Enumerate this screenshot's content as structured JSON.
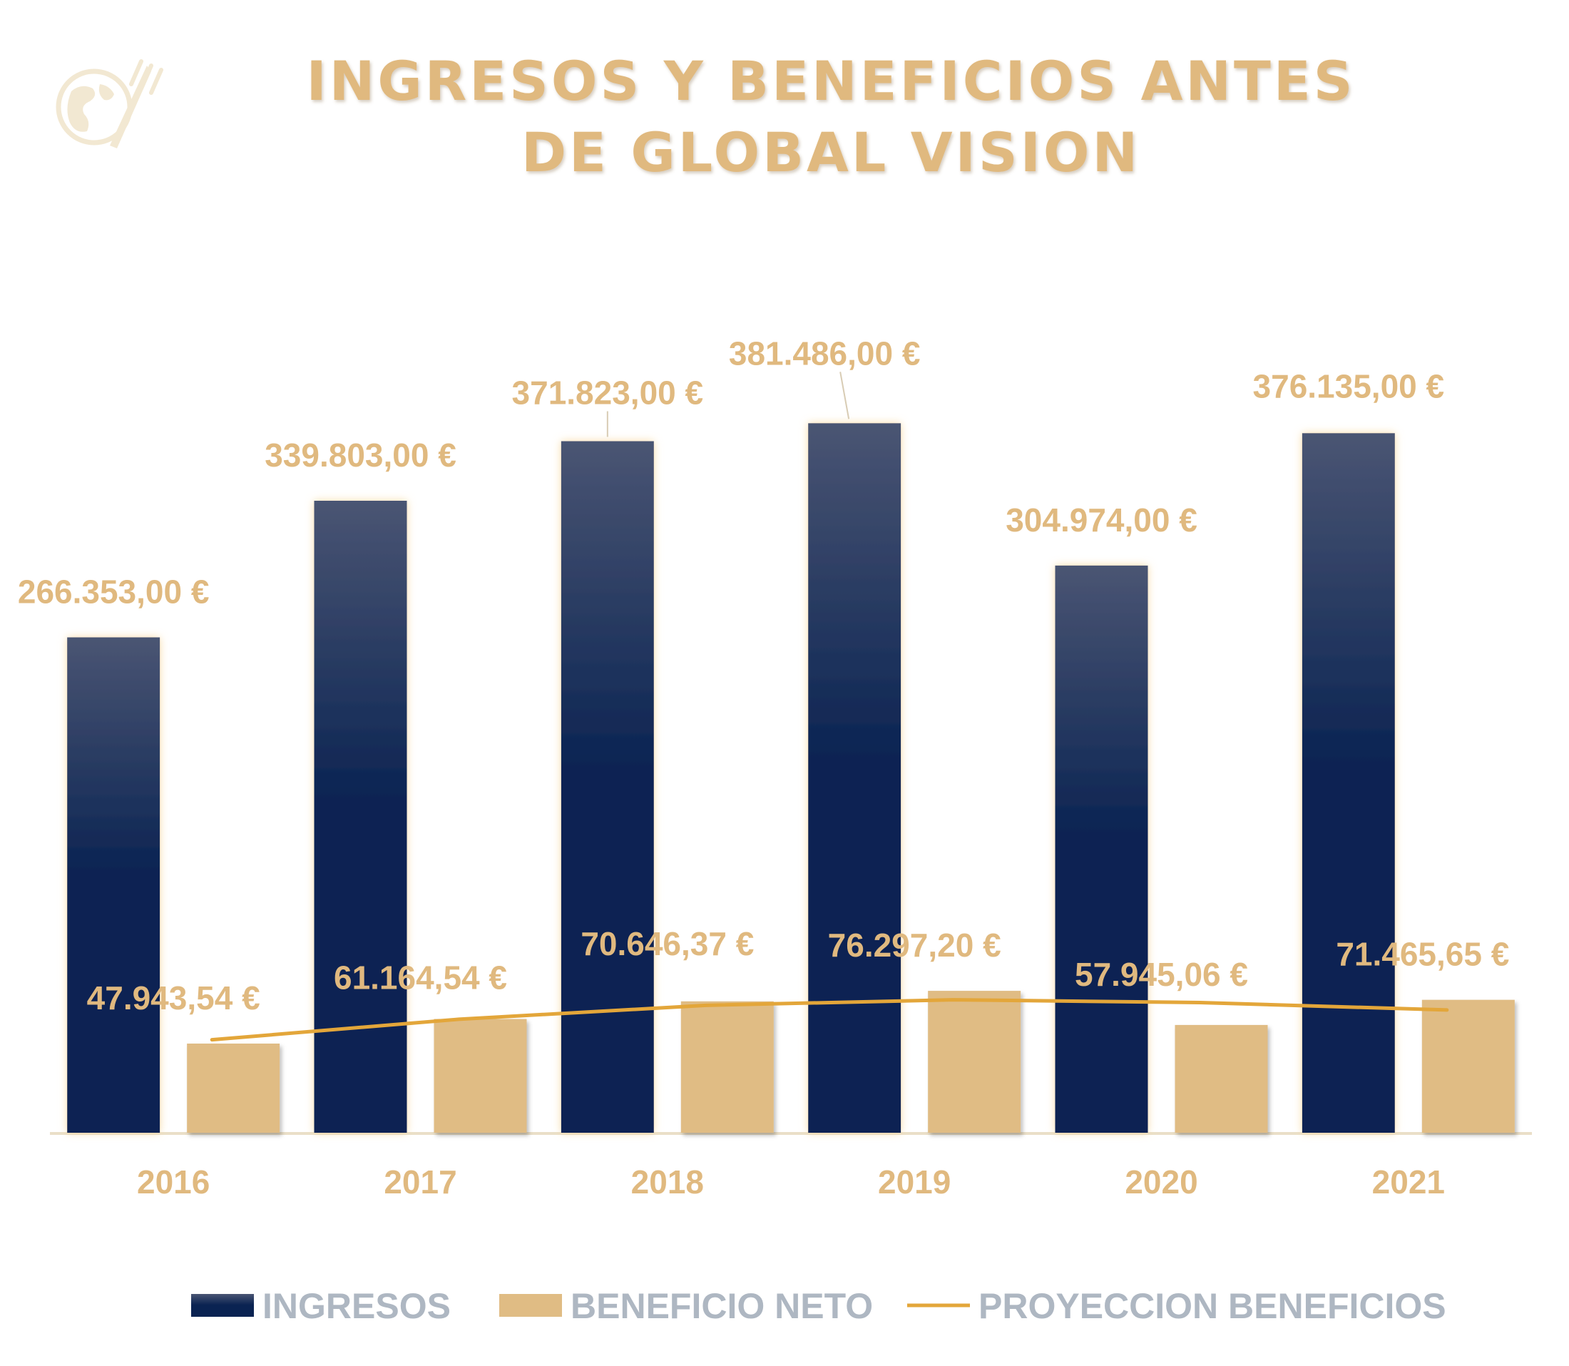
{
  "colors": {
    "ingresos_top": "#4A5573",
    "ingresos_bottom": "#0A2352",
    "beneficio": "#E0BC84",
    "proyeccion": "#E3A63A",
    "accent_text": "#E0B97F",
    "legend_text": "#AEB7C2",
    "axis": "#EADFC8",
    "glow": "#FCE8C4"
  },
  "logo": {
    "icon": "globe-fork-icon"
  },
  "chart_data": {
    "type": "bar",
    "title_lines": [
      "INGRESOS Y BENEFICIOS ANTES",
      "DE GLOBAL VISION"
    ],
    "categories": [
      "2016",
      "2017",
      "2018",
      "2019",
      "2020",
      "2021"
    ],
    "ylim": [
      0,
      540000
    ],
    "series": [
      {
        "name": "INGRESOS",
        "kind": "bar",
        "values": [
          266353.0,
          339803.0,
          371823.0,
          381486.0,
          304974.0,
          376135.0
        ],
        "labels": [
          "266.353,00 €",
          "339.803,00 €",
          "371.823,00 €",
          "381.486,00 €",
          "304.974,00 €",
          "376.135,00 €"
        ]
      },
      {
        "name": "BENEFICIO NETO",
        "kind": "bar",
        "values": [
          47943.54,
          61164.54,
          70646.37,
          76297.2,
          57945.06,
          71465.65
        ],
        "labels": [
          "47.943,54 €",
          "61.164,54 €",
          "70.646,37 €",
          "76.297,20 €",
          "57.945,06 €",
          "71.465,65 €"
        ]
      },
      {
        "name": "PROYECCION BENEFICIOS",
        "kind": "trendline",
        "values": [
          50000,
          61000,
          68500,
          71500,
          70000,
          66000
        ]
      }
    ],
    "legend": [
      "INGRESOS",
      "BENEFICIO NETO",
      "PROYECCION BENEFICIOS"
    ],
    "legend_position": "bottom",
    "grid": false,
    "xlabel": "",
    "ylabel": ""
  }
}
